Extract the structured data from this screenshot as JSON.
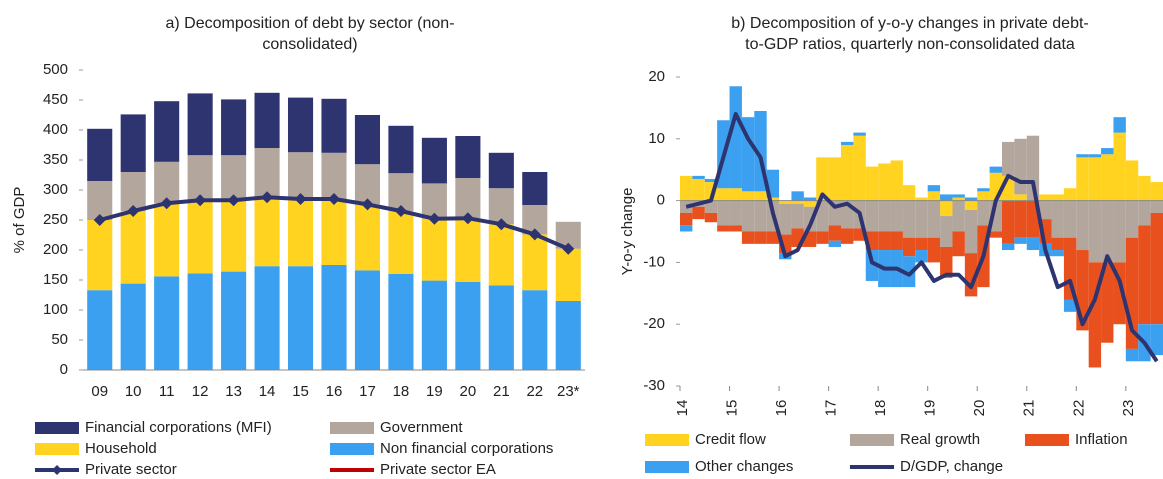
{
  "chart_data": [
    {
      "type": "bar",
      "stacked": true,
      "title": [
        "a) Decomposition of debt by sector (non-",
        "consolidated)"
      ],
      "y_label": "% of GDP",
      "categories": [
        "09",
        "10",
        "11",
        "12",
        "13",
        "14",
        "15",
        "16",
        "17",
        "18",
        "19",
        "20",
        "21",
        "22",
        "23*"
      ],
      "ylim": [
        0,
        500
      ],
      "yticks": [
        0,
        50,
        100,
        150,
        200,
        250,
        300,
        350,
        400,
        450,
        500
      ],
      "series": [
        {
          "name": "Financial corporations (MFI)",
          "color": "#2e3470",
          "values": [
            87,
            96,
            101,
            103,
            93,
            92,
            91,
            90,
            82,
            79,
            76,
            70,
            59,
            55,
            0
          ]
        },
        {
          "name": "Government",
          "color": "#b3a79d",
          "values": [
            65,
            65,
            69,
            75,
            75,
            82,
            78,
            77,
            67,
            63,
            59,
            67,
            60,
            49,
            45
          ]
        },
        {
          "name": "Household",
          "color": "#ffd320",
          "values": [
            117,
            121,
            122,
            122,
            119,
            115,
            112,
            110,
            110,
            105,
            103,
            106,
            102,
            93,
            87
          ]
        },
        {
          "name": "Non financial corporations",
          "color": "#3aa0ef",
          "values": [
            133,
            144,
            156,
            161,
            164,
            173,
            173,
            175,
            166,
            160,
            149,
            147,
            141,
            133,
            115
          ]
        },
        {
          "name": "Private sector",
          "color": "#2e3470",
          "type": "line",
          "marker": "diamond",
          "values": [
            250,
            265,
            278,
            283,
            283,
            288,
            285,
            285,
            276,
            265,
            252,
            253,
            243,
            226,
            202
          ]
        },
        {
          "name": "Private sector EA",
          "color": "#c00000",
          "type": "line",
          "values": [
            null,
            null,
            null,
            null,
            null,
            null,
            null,
            null,
            null,
            null,
            null,
            null,
            null,
            null,
            null
          ]
        }
      ]
    },
    {
      "type": "bar",
      "stacked": true,
      "title": [
        "b) Decomposition of y-o-y changes in private debt-",
        "to-GDP ratios, quarterly non-consolidated data"
      ],
      "y_label": "Y-o-y change",
      "categories": [
        "14",
        null,
        null,
        null,
        "15",
        null,
        null,
        null,
        "16",
        null,
        null,
        null,
        "17",
        null,
        null,
        null,
        "18",
        null,
        null,
        null,
        "19",
        null,
        null,
        null,
        "20",
        null,
        null,
        null,
        "21",
        null,
        null,
        null,
        "22",
        null,
        null,
        null,
        "23",
        null,
        null
      ],
      "ylim": [
        -30,
        20
      ],
      "yticks": [
        -30,
        -20,
        -10,
        0,
        10,
        20
      ],
      "series": [
        {
          "name": "Credit flow",
          "color": "#ffd320",
          "values": [
            4,
            3.5,
            3,
            2,
            2,
            1.5,
            1.5,
            0.5,
            -0.5,
            -0.5,
            -1,
            7,
            7,
            9,
            10.5,
            5.5,
            6,
            6.5,
            2.5,
            0.5,
            1.5,
            -2.5,
            0.5,
            -1.5,
            1.5,
            4.5,
            4,
            1,
            0,
            1,
            1,
            2,
            7,
            7,
            7.5,
            11,
            6.5,
            4,
            3
          ]
        },
        {
          "name": "Real growth",
          "color": "#b3a79d",
          "values": [
            -2,
            -1,
            -2,
            -4,
            -4,
            -5,
            -5,
            -5,
            -5,
            -4,
            -4,
            -5,
            -4,
            -4.5,
            -4.5,
            -5,
            -5,
            -5,
            -6,
            -6,
            -6,
            -5,
            -5,
            -7,
            -4,
            -5,
            5.5,
            9,
            10.5,
            -3,
            -6,
            -6,
            -8,
            -10,
            -10,
            -10,
            -6,
            -4,
            -2
          ]
        },
        {
          "name": "Inflation",
          "color": "#e8501e",
          "values": [
            -2,
            -2,
            -1.5,
            -1,
            -1,
            -2,
            -2,
            -2,
            -3,
            -3,
            -2.5,
            -2,
            -2.5,
            -2.5,
            -2,
            -3,
            -3,
            -3,
            -3,
            -2,
            -4,
            -5,
            -4,
            -7,
            -10,
            -1,
            -7,
            -6,
            -6,
            -4,
            -2,
            -10,
            -13,
            -17,
            -13,
            -10,
            -18,
            -16,
            -18
          ]
        },
        {
          "name": "Other changes",
          "color": "#3aa0ef",
          "values": [
            -1,
            0.5,
            0.5,
            11,
            16.5,
            12,
            13,
            4.5,
            -1,
            1.5,
            0.5,
            0,
            -1,
            0.5,
            0.5,
            -5,
            -6,
            -6,
            -5,
            -2,
            1,
            1,
            0.5,
            0.5,
            0.5,
            1,
            -1,
            -1,
            -2,
            -2,
            -1,
            -2,
            0.5,
            0.5,
            1,
            2.5,
            -2,
            -6,
            -5
          ]
        },
        {
          "name": "D/GDP, change",
          "color": "#2e3470",
          "type": "line",
          "values": [
            -1,
            -0.5,
            0,
            7,
            14,
            10,
            7,
            -2,
            -9,
            -8,
            -4,
            1,
            -1,
            -0.5,
            -2,
            -10,
            -11,
            -11,
            -12,
            -10,
            -13,
            -12,
            -12,
            -14,
            -9,
            0,
            4,
            3,
            3,
            -8,
            -14,
            -13,
            -20,
            -16,
            -9,
            -13,
            -21,
            -23,
            -26
          ]
        }
      ]
    }
  ]
}
